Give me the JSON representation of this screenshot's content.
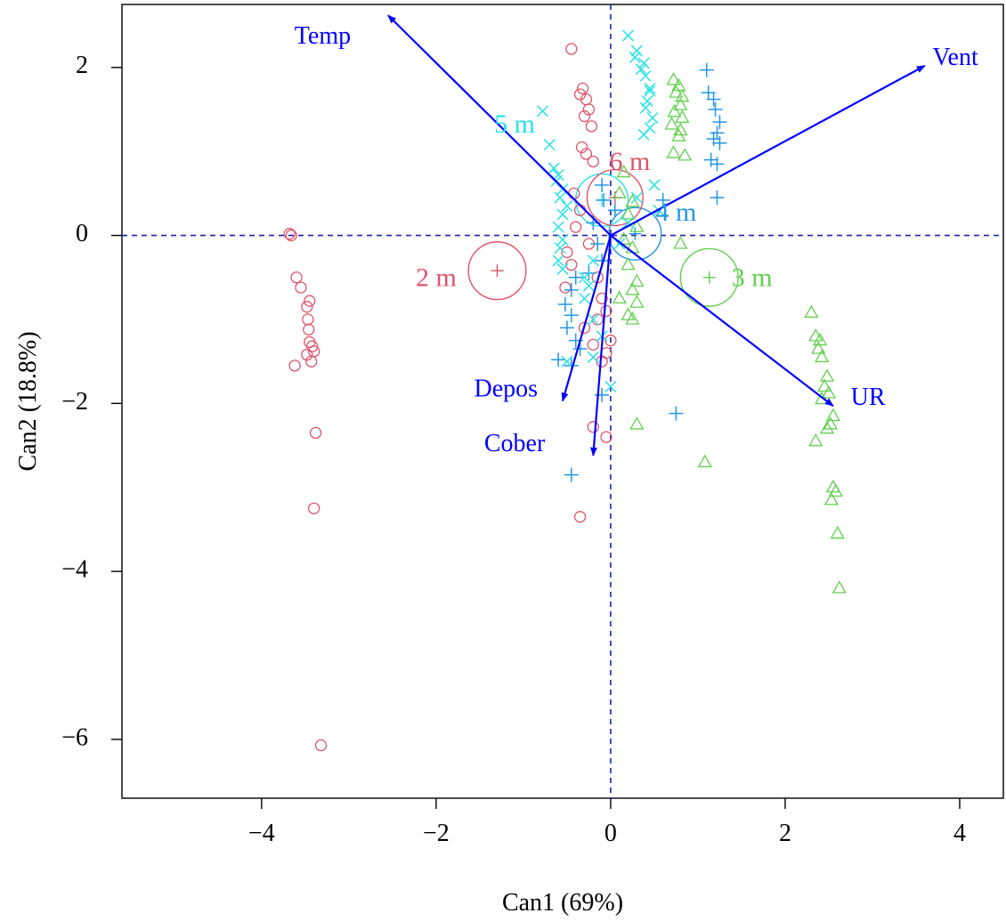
{
  "chart_data": {
    "type": "scatter",
    "title": "",
    "xlabel": "Can1 (69%)",
    "ylabel": "Can2 (18.8%)",
    "xlim": [
      -5.6,
      4.5
    ],
    "ylim": [
      -6.7,
      2.75
    ],
    "x_ticks": [
      -4,
      -2,
      0,
      2,
      4
    ],
    "y_ticks": [
      2,
      0,
      -2,
      -4,
      -6
    ],
    "x_tick_labels": [
      "−4",
      "−2",
      "0",
      "2",
      "4"
    ],
    "y_tick_labels": [
      "2",
      "0",
      "−2",
      "−4",
      "−6"
    ],
    "grid": false,
    "reference_lines": {
      "x": 0,
      "y": 0,
      "color": "#2020b0"
    },
    "series": [
      {
        "name": "2 m",
        "color": "#df536b",
        "marker": "circle",
        "centroid": [
          -1.3,
          -0.42
        ],
        "points": [
          [
            -3.68,
            0.02
          ],
          [
            -3.66,
            0.0
          ],
          [
            -3.6,
            -0.5
          ],
          [
            -3.55,
            -0.62
          ],
          [
            -3.45,
            -0.78
          ],
          [
            -3.48,
            -0.85
          ],
          [
            -3.47,
            -1.0
          ],
          [
            -3.46,
            -1.12
          ],
          [
            -3.45,
            -1.27
          ],
          [
            -3.42,
            -1.32
          ],
          [
            -3.4,
            -1.38
          ],
          [
            -3.48,
            -1.42
          ],
          [
            -3.43,
            -1.5
          ],
          [
            -3.62,
            -1.55
          ],
          [
            -3.38,
            -2.35
          ],
          [
            -3.4,
            -3.25
          ],
          [
            -3.32,
            -6.07
          ],
          [
            -0.45,
            2.22
          ],
          [
            -0.32,
            1.75
          ],
          [
            -0.35,
            1.68
          ],
          [
            -0.28,
            1.62
          ],
          [
            -0.25,
            1.5
          ],
          [
            -0.3,
            1.42
          ],
          [
            -0.22,
            1.3
          ],
          [
            -0.33,
            1.05
          ],
          [
            -0.28,
            0.97
          ],
          [
            -0.2,
            0.88
          ],
          [
            -0.42,
            0.5
          ],
          [
            -0.35,
            0.3
          ],
          [
            -0.4,
            0.1
          ],
          [
            -0.25,
            -0.1
          ],
          [
            -0.5,
            -0.2
          ],
          [
            -0.45,
            -0.35
          ],
          [
            -0.52,
            -0.62
          ],
          [
            -0.15,
            -0.5
          ],
          [
            -0.1,
            -0.75
          ],
          [
            -0.05,
            -0.9
          ],
          [
            -0.15,
            -1.0
          ],
          [
            -0.3,
            -1.1
          ],
          [
            0.0,
            -1.25
          ],
          [
            -0.2,
            -1.3
          ],
          [
            -0.05,
            -1.4
          ],
          [
            -0.1,
            -1.5
          ],
          [
            -0.2,
            -2.28
          ],
          [
            -0.05,
            -2.4
          ],
          [
            -0.35,
            -3.35
          ]
        ]
      },
      {
        "name": "3 m",
        "color": "#61d04f",
        "marker": "triangle",
        "centroid": [
          1.13,
          -0.5
        ],
        "points": [
          [
            0.72,
            1.85
          ],
          [
            0.78,
            1.78
          ],
          [
            0.75,
            1.7
          ],
          [
            0.82,
            1.65
          ],
          [
            0.8,
            1.55
          ],
          [
            0.73,
            1.47
          ],
          [
            0.82,
            1.4
          ],
          [
            0.7,
            1.32
          ],
          [
            0.8,
            1.25
          ],
          [
            0.78,
            1.18
          ],
          [
            0.72,
            0.98
          ],
          [
            0.85,
            0.95
          ],
          [
            0.15,
            0.75
          ],
          [
            0.1,
            0.5
          ],
          [
            0.25,
            0.4
          ],
          [
            0.2,
            0.25
          ],
          [
            0.3,
            0.1
          ],
          [
            0.15,
            -0.05
          ],
          [
            0.25,
            -0.15
          ],
          [
            0.8,
            -0.1
          ],
          [
            0.2,
            -0.35
          ],
          [
            0.3,
            -0.55
          ],
          [
            0.25,
            -0.65
          ],
          [
            0.1,
            -0.75
          ],
          [
            0.3,
            -0.8
          ],
          [
            0.2,
            -0.95
          ],
          [
            0.25,
            -1.0
          ],
          [
            2.3,
            -0.92
          ],
          [
            2.35,
            -1.2
          ],
          [
            2.4,
            -1.25
          ],
          [
            2.38,
            -1.35
          ],
          [
            2.42,
            -1.45
          ],
          [
            2.48,
            -1.68
          ],
          [
            2.45,
            -1.8
          ],
          [
            2.5,
            -1.88
          ],
          [
            2.42,
            -1.95
          ],
          [
            2.55,
            -2.15
          ],
          [
            2.52,
            -2.25
          ],
          [
            2.48,
            -2.3
          ],
          [
            2.35,
            -2.45
          ],
          [
            0.3,
            -2.25
          ],
          [
            1.08,
            -2.7
          ],
          [
            2.55,
            -3.0
          ],
          [
            2.58,
            -3.05
          ],
          [
            2.53,
            -3.15
          ],
          [
            2.6,
            -3.55
          ],
          [
            2.62,
            -4.2
          ]
        ]
      },
      {
        "name": "4 m",
        "color": "#2297e6",
        "marker": "plus",
        "centroid": [
          0.28,
          0.02
        ],
        "points": [
          [
            1.1,
            1.97
          ],
          [
            1.12,
            1.7
          ],
          [
            1.18,
            1.62
          ],
          [
            1.2,
            1.5
          ],
          [
            1.25,
            1.35
          ],
          [
            1.22,
            1.22
          ],
          [
            1.18,
            1.15
          ],
          [
            1.25,
            1.1
          ],
          [
            1.15,
            0.9
          ],
          [
            1.22,
            0.85
          ],
          [
            1.22,
            0.45
          ],
          [
            0.6,
            0.42
          ],
          [
            -0.1,
            0.6
          ],
          [
            -0.08,
            0.42
          ],
          [
            0.05,
            0.3
          ],
          [
            -0.2,
            0.15
          ],
          [
            -0.15,
            -0.1
          ],
          [
            -0.1,
            -0.3
          ],
          [
            -0.25,
            -0.45
          ],
          [
            -0.4,
            -0.5
          ],
          [
            -0.45,
            -0.65
          ],
          [
            -0.52,
            -0.82
          ],
          [
            -0.45,
            -0.95
          ],
          [
            -0.5,
            -1.1
          ],
          [
            -0.4,
            -1.25
          ],
          [
            -0.35,
            -1.35
          ],
          [
            -0.6,
            -1.48
          ],
          [
            -0.45,
            -1.55
          ],
          [
            -0.1,
            -1.9
          ],
          [
            0.75,
            -2.12
          ],
          [
            -0.45,
            -2.85
          ]
        ]
      },
      {
        "name": "5 m",
        "color": "#28e2e5",
        "marker": "x",
        "centroid": [
          -0.1,
          0.42
        ],
        "points": [
          [
            0.2,
            2.38
          ],
          [
            0.3,
            2.2
          ],
          [
            0.28,
            2.12
          ],
          [
            0.38,
            2.05
          ],
          [
            0.35,
            1.98
          ],
          [
            0.4,
            1.9
          ],
          [
            0.45,
            1.75
          ],
          [
            0.45,
            1.72
          ],
          [
            0.42,
            1.6
          ],
          [
            0.4,
            1.52
          ],
          [
            0.48,
            1.4
          ],
          [
            0.45,
            1.28
          ],
          [
            0.38,
            1.2
          ],
          [
            -0.78,
            1.48
          ],
          [
            -0.7,
            1.08
          ],
          [
            -0.65,
            0.8
          ],
          [
            -0.6,
            0.72
          ],
          [
            -0.62,
            0.65
          ],
          [
            -0.55,
            0.55
          ],
          [
            -0.58,
            0.45
          ],
          [
            -0.5,
            0.35
          ],
          [
            -0.55,
            0.25
          ],
          [
            -0.6,
            0.1
          ],
          [
            -0.55,
            -0.05
          ],
          [
            -0.58,
            -0.15
          ],
          [
            -0.6,
            -0.3
          ],
          [
            -0.55,
            -0.4
          ],
          [
            0.5,
            0.6
          ],
          [
            0.3,
            0.45
          ],
          [
            0.55,
            0.3
          ],
          [
            0.2,
            0.15
          ],
          [
            0.1,
            -0.1
          ],
          [
            -0.2,
            -0.3
          ],
          [
            -0.3,
            -0.5
          ],
          [
            -0.25,
            -0.6
          ],
          [
            -0.3,
            -0.75
          ],
          [
            -0.2,
            -1.0
          ],
          [
            -0.1,
            -1.2
          ],
          [
            -0.2,
            -1.45
          ],
          [
            -0.5,
            -1.5
          ],
          [
            0.0,
            -1.8
          ]
        ]
      },
      {
        "name": "6 m",
        "color": "#df536b",
        "marker": "circle-small",
        "centroid": [
          0.05,
          0.45
        ],
        "points": []
      }
    ],
    "group_labels": [
      {
        "text": "2 m",
        "x": -2.0,
        "y": -0.53,
        "color": "#df536b"
      },
      {
        "text": "3 m",
        "x": 1.62,
        "y": -0.53,
        "color": "#61d04f"
      },
      {
        "text": "4 m",
        "x": 0.75,
        "y": 0.25,
        "color": "#2297e6"
      },
      {
        "text": "5 m",
        "x": -1.1,
        "y": 1.3,
        "color": "#28e2e5"
      },
      {
        "text": "6 m",
        "x": 0.22,
        "y": 0.85,
        "color": "#df536b"
      }
    ],
    "centroid_circles": [
      {
        "series": "2 m",
        "x": -1.3,
        "y": -0.42,
        "r": 0.33
      },
      {
        "series": "3 m",
        "x": 1.13,
        "y": -0.5,
        "r": 0.33
      },
      {
        "series": "4 m",
        "x": 0.28,
        "y": 0.02,
        "r": 0.3
      },
      {
        "series": "5 m",
        "x": -0.1,
        "y": 0.42,
        "r": 0.3
      },
      {
        "series": "6 m",
        "x": 0.05,
        "y": 0.45,
        "r": 0.32
      }
    ],
    "vectors": [
      {
        "name": "Temp",
        "x": -2.55,
        "y": 2.62,
        "label_x": -3.3,
        "label_y": 2.35
      },
      {
        "name": "Vent",
        "x": 3.6,
        "y": 2.02,
        "label_x": 3.95,
        "label_y": 2.1
      },
      {
        "name": "UR",
        "x": 2.55,
        "y": -2.03,
        "label_x": 2.95,
        "label_y": -1.95
      },
      {
        "name": "Depos",
        "x": -0.55,
        "y": -1.97,
        "label_x": -1.2,
        "label_y": -1.85
      },
      {
        "name": "Cober",
        "x": -0.2,
        "y": -2.62,
        "label_x": -1.1,
        "label_y": -2.5
      }
    ],
    "vector_color": "#0000ff"
  }
}
